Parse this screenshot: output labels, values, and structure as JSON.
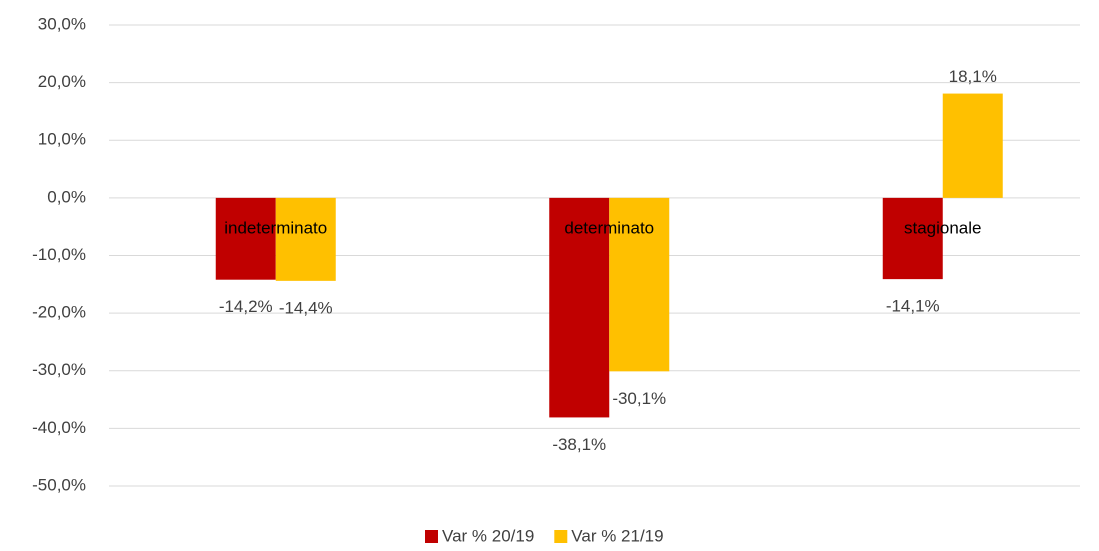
{
  "chart_data": {
    "type": "bar",
    "categories": [
      "indeterminato",
      "determinato",
      "stagionale"
    ],
    "series": [
      {
        "name": "Var % 20/19",
        "color": "#c00000",
        "values": [
          -14.2,
          -38.1,
          -14.1
        ],
        "value_labels": [
          "-14,2%",
          "-38,1%",
          "-14,1%"
        ]
      },
      {
        "name": "Var % 21/19",
        "color": "#ffc000",
        "values": [
          -14.4,
          -30.1,
          18.1
        ],
        "value_labels": [
          "-14,4%",
          "-30,1%",
          "18,1%"
        ]
      }
    ],
    "ylim": [
      -50,
      30
    ],
    "yticks": [
      {
        "value": 30,
        "label": "30,0%"
      },
      {
        "value": 20,
        "label": "20,0%"
      },
      {
        "value": 10,
        "label": "10,0%"
      },
      {
        "value": 0,
        "label": "0,0%"
      },
      {
        "value": -10,
        "label": "-10,0%"
      },
      {
        "value": -20,
        "label": "-20,0%"
      },
      {
        "value": -30,
        "label": "-30,0%"
      },
      {
        "value": -40,
        "label": "-40,0%"
      },
      {
        "value": -50,
        "label": "-50,0%"
      }
    ],
    "grid": true,
    "legend": "bottom"
  }
}
